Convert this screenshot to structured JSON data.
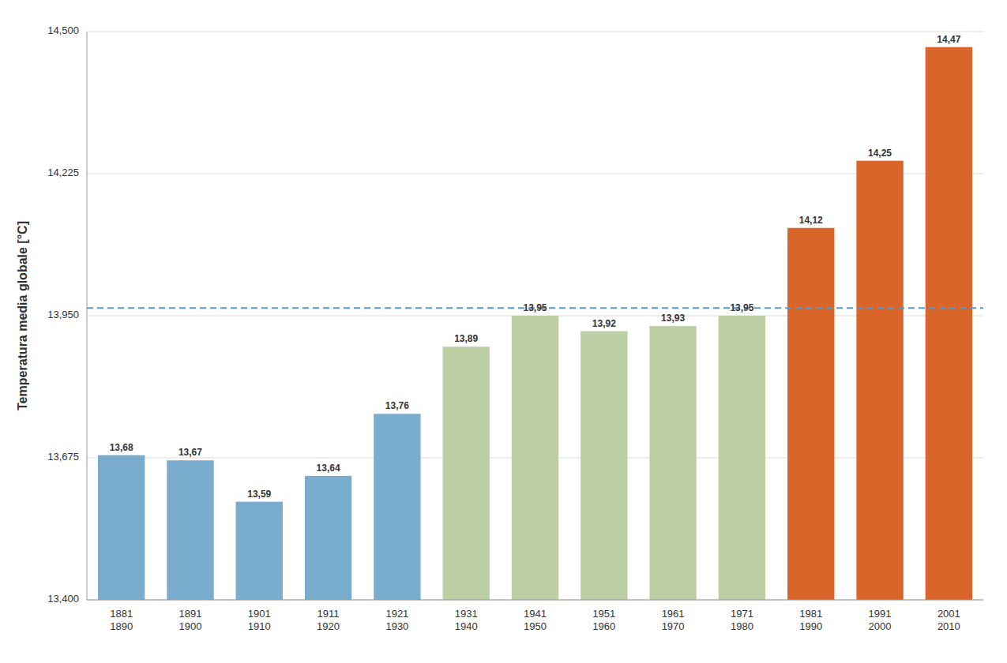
{
  "chart_data": {
    "type": "bar",
    "ylabel": "Temperatura media globale [°C]",
    "categories": [
      "1881\n1890",
      "1891\n1900",
      "1901\n1910",
      "1911\n1920",
      "1921\n1930",
      "1931\n1940",
      "1941\n1950",
      "1951\n1960",
      "1961\n1970",
      "1971\n1980",
      "1981\n1990",
      "1991\n2000",
      "2001\n2010"
    ],
    "values": [
      13.68,
      13.67,
      13.59,
      13.64,
      13.76,
      13.89,
      13.95,
      13.92,
      13.93,
      13.95,
      14.12,
      14.25,
      14.47
    ],
    "value_labels": [
      "13,68",
      "13,67",
      "13,59",
      "13,64",
      "13,76",
      "13,89",
      "13,95",
      "13,92",
      "13,93",
      "13,95",
      "14,12",
      "14,25",
      "14,47"
    ],
    "colors": [
      "#7aacce",
      "#7aacce",
      "#7aacce",
      "#7aacce",
      "#7aacce",
      "#bccfa4",
      "#bccfa4",
      "#bccfa4",
      "#bccfa4",
      "#bccfa4",
      "#d9652a",
      "#d9652a",
      "#d9652a"
    ],
    "data_labels": true,
    "reference_line": {
      "value": 13.965,
      "color": "#5599cc",
      "line_style": "dashed"
    },
    "ylim": [
      13.4,
      14.5
    ],
    "yticks": [
      {
        "value": 13.4,
        "label": "13,400"
      },
      {
        "value": 13.675,
        "label": "13,675"
      },
      {
        "value": 13.95,
        "label": "13,950"
      },
      {
        "value": 14.225,
        "label": "14,225"
      },
      {
        "value": 14.5,
        "label": "14,500"
      }
    ],
    "grid": true
  }
}
